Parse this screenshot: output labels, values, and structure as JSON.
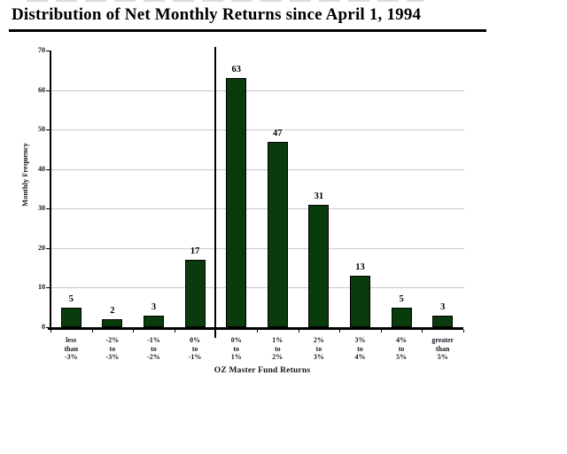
{
  "page": {
    "title": "Distribution of Net Monthly Returns since April 1, 1994"
  },
  "chart_data": {
    "type": "bar",
    "title": "Distribution of Net Monthly Returns since April 1, 1994",
    "categories": [
      [
        "less",
        "than",
        "-3%"
      ],
      [
        "-2%",
        "to",
        "-3%"
      ],
      [
        "-1%",
        "to",
        "-2%"
      ],
      [
        "0%",
        "to",
        "-1%"
      ],
      [
        "0%",
        "to",
        "1%"
      ],
      [
        "1%",
        "to",
        "2%"
      ],
      [
        "2%",
        "to",
        "3%"
      ],
      [
        "3%",
        "to",
        "4%"
      ],
      [
        "4%",
        "to",
        "5%"
      ],
      [
        "greater",
        "than",
        "5%"
      ]
    ],
    "values": [
      5,
      2,
      3,
      17,
      63,
      47,
      31,
      13,
      5,
      3
    ],
    "data_labels": [
      5,
      2,
      3,
      17,
      63,
      47,
      31,
      13,
      5,
      3
    ],
    "xlabel": "OZ Master Fund Returns",
    "ylabel": "Monthly Frequency",
    "ylim": [
      0,
      70
    ],
    "yticks": [
      0,
      10,
      20,
      30,
      40,
      50,
      60,
      70
    ],
    "grid": true,
    "legend": false,
    "divider_after_category": 4,
    "bar_color": "#0a3b0d",
    "gridline_color": "#c9c9c9",
    "axis_color": "#000000",
    "text_color": "#15151f"
  }
}
